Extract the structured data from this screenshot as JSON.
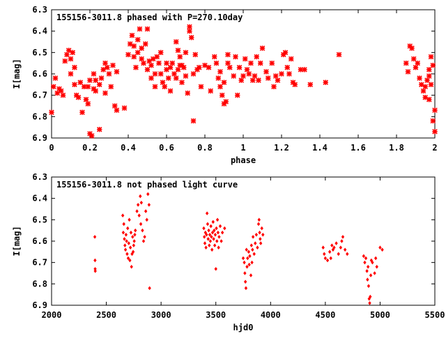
{
  "chart_data": [
    {
      "type": "scatter",
      "title": "155156-3011.8 phased with P=270.10day",
      "xlabel": "phase",
      "ylabel": "I[mag]",
      "xlim": [
        0,
        2
      ],
      "ylim": [
        6.3,
        6.9
      ],
      "y_inverted": true,
      "x_ticks": [
        "0",
        "0.2",
        "0.4",
        "0.6",
        "0.8",
        "1",
        "1.2",
        "1.4",
        "1.6",
        "1.8",
        "2"
      ],
      "y_ticks": [
        "6.3",
        "6.4",
        "6.5",
        "6.6",
        "6.7",
        "6.8",
        "6.9"
      ],
      "grid": false,
      "marker": "cross",
      "color": "#ff0000",
      "points": [
        [
          0.0,
          6.78
        ],
        [
          0.01,
          6.66
        ],
        [
          0.02,
          6.62
        ],
        [
          0.03,
          6.69
        ],
        [
          0.04,
          6.67
        ],
        [
          0.05,
          6.68
        ],
        [
          0.06,
          6.7
        ],
        [
          0.07,
          6.54
        ],
        [
          0.08,
          6.51
        ],
        [
          0.09,
          6.49
        ],
        [
          0.1,
          6.53
        ],
        [
          0.11,
          6.5
        ],
        [
          0.1,
          6.6
        ],
        [
          0.12,
          6.57
        ],
        [
          0.12,
          6.65
        ],
        [
          0.13,
          6.7
        ],
        [
          0.14,
          6.71
        ],
        [
          0.15,
          6.64
        ],
        [
          0.16,
          6.78
        ],
        [
          0.17,
          6.66
        ],
        [
          0.18,
          6.72
        ],
        [
          0.19,
          6.74
        ],
        [
          0.19,
          6.66
        ],
        [
          0.2,
          6.88
        ],
        [
          0.21,
          6.89
        ],
        [
          0.2,
          6.63
        ],
        [
          0.22,
          6.67
        ],
        [
          0.22,
          6.6
        ],
        [
          0.23,
          6.68
        ],
        [
          0.23,
          6.63
        ],
        [
          0.25,
          6.86
        ],
        [
          0.25,
          6.65
        ],
        [
          0.26,
          6.62
        ],
        [
          0.27,
          6.58
        ],
        [
          0.28,
          6.69
        ],
        [
          0.28,
          6.55
        ],
        [
          0.29,
          6.57
        ],
        [
          0.3,
          6.6
        ],
        [
          0.31,
          6.66
        ],
        [
          0.32,
          6.56
        ],
        [
          0.33,
          6.75
        ],
        [
          0.34,
          6.77
        ],
        [
          0.34,
          6.59
        ],
        [
          0.38,
          6.76
        ],
        [
          0.4,
          6.51
        ],
        [
          0.41,
          6.46
        ],
        [
          0.42,
          6.42
        ],
        [
          0.43,
          6.52
        ],
        [
          0.43,
          6.47
        ],
        [
          0.44,
          6.57
        ],
        [
          0.45,
          6.44
        ],
        [
          0.45,
          6.5
        ],
        [
          0.46,
          6.39
        ],
        [
          0.47,
          6.48
        ],
        [
          0.47,
          6.53
        ],
        [
          0.48,
          6.55
        ],
        [
          0.49,
          6.46
        ],
        [
          0.5,
          6.58
        ],
        [
          0.5,
          6.39
        ],
        [
          0.51,
          6.54
        ],
        [
          0.52,
          6.62
        ],
        [
          0.52,
          6.56
        ],
        [
          0.53,
          6.53
        ],
        [
          0.54,
          6.6
        ],
        [
          0.54,
          6.66
        ],
        [
          0.55,
          6.52
        ],
        [
          0.56,
          6.55
        ],
        [
          0.57,
          6.6
        ],
        [
          0.57,
          6.5
        ],
        [
          0.58,
          6.64
        ],
        [
          0.59,
          6.66
        ],
        [
          0.6,
          6.58
        ],
        [
          0.6,
          6.55
        ],
        [
          0.61,
          6.62
        ],
        [
          0.62,
          6.57
        ],
        [
          0.62,
          6.68
        ],
        [
          0.63,
          6.55
        ],
        [
          0.64,
          6.6
        ],
        [
          0.65,
          6.45
        ],
        [
          0.65,
          6.62
        ],
        [
          0.66,
          6.58
        ],
        [
          0.66,
          6.49
        ],
        [
          0.67,
          6.56
        ],
        [
          0.67,
          6.52
        ],
        [
          0.68,
          6.64
        ],
        [
          0.68,
          6.56
        ],
        [
          0.69,
          6.57
        ],
        [
          0.7,
          6.5
        ],
        [
          0.7,
          6.61
        ],
        [
          0.71,
          6.69
        ],
        [
          0.72,
          6.38
        ],
        [
          0.72,
          6.4
        ],
        [
          0.73,
          6.43
        ],
        [
          0.74,
          6.82
        ],
        [
          0.74,
          6.6
        ],
        [
          0.75,
          6.51
        ],
        [
          0.76,
          6.58
        ],
        [
          0.77,
          6.57
        ],
        [
          0.78,
          6.66
        ],
        [
          0.8,
          6.56
        ],
        [
          0.82,
          6.57
        ],
        [
          0.83,
          6.68
        ],
        [
          0.85,
          6.52
        ],
        [
          0.86,
          6.55
        ],
        [
          0.87,
          6.62
        ],
        [
          0.88,
          6.66
        ],
        [
          0.88,
          6.59
        ],
        [
          0.89,
          6.7
        ],
        [
          0.9,
          6.74
        ],
        [
          0.9,
          6.64
        ],
        [
          0.91,
          6.73
        ],
        [
          0.92,
          6.55
        ],
        [
          0.92,
          6.51
        ],
        [
          0.93,
          6.57
        ],
        [
          0.95,
          6.61
        ],
        [
          0.96,
          6.52
        ],
        [
          0.97,
          6.7
        ],
        [
          0.98,
          6.57
        ],
        [
          0.99,
          6.63
        ],
        [
          1.0,
          6.61
        ],
        [
          1.01,
          6.53
        ],
        [
          1.02,
          6.58
        ],
        [
          1.03,
          6.6
        ],
        [
          1.04,
          6.55
        ],
        [
          1.05,
          6.63
        ],
        [
          1.06,
          6.61
        ],
        [
          1.07,
          6.52
        ],
        [
          1.08,
          6.63
        ],
        [
          1.09,
          6.55
        ],
        [
          1.1,
          6.48
        ],
        [
          1.12,
          6.59
        ],
        [
          1.13,
          6.62
        ],
        [
          1.15,
          6.55
        ],
        [
          1.16,
          6.66
        ],
        [
          1.17,
          6.61
        ],
        [
          1.18,
          6.63
        ],
        [
          1.2,
          6.6
        ],
        [
          1.21,
          6.51
        ],
        [
          1.22,
          6.5
        ],
        [
          1.23,
          6.57
        ],
        [
          1.24,
          6.6
        ],
        [
          1.25,
          6.53
        ],
        [
          1.26,
          6.64
        ],
        [
          1.27,
          6.65
        ],
        [
          1.3,
          6.58
        ],
        [
          1.32,
          6.58
        ],
        [
          1.35,
          6.65
        ],
        [
          1.43,
          6.64
        ],
        [
          1.5,
          6.51
        ],
        [
          1.85,
          6.55
        ],
        [
          1.86,
          6.59
        ],
        [
          1.87,
          6.47
        ],
        [
          1.88,
          6.48
        ],
        [
          1.89,
          6.53
        ],
        [
          1.9,
          6.57
        ],
        [
          1.91,
          6.55
        ],
        [
          1.92,
          6.62
        ],
        [
          1.93,
          6.65
        ],
        [
          1.94,
          6.68
        ],
        [
          1.95,
          6.71
        ],
        [
          1.96,
          6.63
        ],
        [
          1.97,
          6.58
        ],
        [
          1.97,
          6.72
        ],
        [
          1.98,
          6.52
        ],
        [
          1.98,
          6.65
        ],
        [
          1.99,
          6.56
        ],
        [
          1.99,
          6.82
        ],
        [
          2.0,
          6.77
        ],
        [
          2.0,
          6.87
        ],
        [
          1.97,
          6.61
        ],
        [
          1.95,
          6.66
        ]
      ]
    },
    {
      "type": "scatter",
      "title": "155156-3011.8 not phased light curve",
      "xlabel": "hjd0",
      "ylabel": "I[mag]",
      "xlim": [
        2000,
        5500
      ],
      "ylim": [
        6.3,
        6.9
      ],
      "y_inverted": true,
      "x_ticks": [
        "2000",
        "2500",
        "3000",
        "3500",
        "4000",
        "4500",
        "5000",
        "5500"
      ],
      "y_ticks": [
        "6.3",
        "6.4",
        "6.5",
        "6.6",
        "6.7",
        "6.8",
        "6.9"
      ],
      "grid": false,
      "marker": "diamond",
      "color": "#ff0000",
      "points": [
        [
          2395,
          6.58
        ],
        [
          2397,
          6.69
        ],
        [
          2398,
          6.73
        ],
        [
          2399,
          6.74
        ],
        [
          2650,
          6.48
        ],
        [
          2655,
          6.56
        ],
        [
          2660,
          6.52
        ],
        [
          2665,
          6.59
        ],
        [
          2670,
          6.62
        ],
        [
          2675,
          6.64
        ],
        [
          2680,
          6.57
        ],
        [
          2685,
          6.6
        ],
        [
          2690,
          6.66
        ],
        [
          2695,
          6.54
        ],
        [
          2700,
          6.68
        ],
        [
          2705,
          6.61
        ],
        [
          2710,
          6.5
        ],
        [
          2715,
          6.69
        ],
        [
          2720,
          6.63
        ],
        [
          2725,
          6.56
        ],
        [
          2730,
          6.72
        ],
        [
          2735,
          6.66
        ],
        [
          2740,
          6.58
        ],
        [
          2745,
          6.65
        ],
        [
          2750,
          6.62
        ],
        [
          2755,
          6.6
        ],
        [
          2760,
          6.57
        ],
        [
          2765,
          6.55
        ],
        [
          2780,
          6.46
        ],
        [
          2790,
          6.43
        ],
        [
          2800,
          6.48
        ],
        [
          2810,
          6.39
        ],
        [
          2815,
          6.52
        ],
        [
          2820,
          6.42
        ],
        [
          2830,
          6.55
        ],
        [
          2840,
          6.6
        ],
        [
          2850,
          6.58
        ],
        [
          2860,
          6.46
        ],
        [
          2870,
          6.5
        ],
        [
          2880,
          6.38
        ],
        [
          2890,
          6.43
        ],
        [
          2895,
          6.82
        ],
        [
          3390,
          6.54
        ],
        [
          3395,
          6.58
        ],
        [
          3400,
          6.61
        ],
        [
          3405,
          6.56
        ],
        [
          3410,
          6.63
        ],
        [
          3415,
          6.57
        ],
        [
          3420,
          6.47
        ],
        [
          3425,
          6.52
        ],
        [
          3430,
          6.59
        ],
        [
          3435,
          6.55
        ],
        [
          3440,
          6.62
        ],
        [
          3445,
          6.57
        ],
        [
          3450,
          6.6
        ],
        [
          3455,
          6.53
        ],
        [
          3460,
          6.58
        ],
        [
          3465,
          6.64
        ],
        [
          3470,
          6.56
        ],
        [
          3475,
          6.51
        ],
        [
          3480,
          6.59
        ],
        [
          3485,
          6.55
        ],
        [
          3490,
          6.62
        ],
        [
          3495,
          6.57
        ],
        [
          3500,
          6.73
        ],
        [
          3505,
          6.54
        ],
        [
          3510,
          6.6
        ],
        [
          3515,
          6.5
        ],
        [
          3520,
          6.56
        ],
        [
          3525,
          6.63
        ],
        [
          3530,
          6.58
        ],
        [
          3540,
          6.53
        ],
        [
          3550,
          6.6
        ],
        [
          3560,
          6.56
        ],
        [
          3580,
          6.54
        ],
        [
          3750,
          6.68
        ],
        [
          3760,
          6.7
        ],
        [
          3765,
          6.75
        ],
        [
          3770,
          6.79
        ],
        [
          3775,
          6.82
        ],
        [
          3780,
          6.64
        ],
        [
          3785,
          6.72
        ],
        [
          3790,
          6.68
        ],
        [
          3800,
          6.65
        ],
        [
          3805,
          6.71
        ],
        [
          3810,
          6.67
        ],
        [
          3820,
          6.76
        ],
        [
          3825,
          6.62
        ],
        [
          3830,
          6.7
        ],
        [
          3835,
          6.64
        ],
        [
          3840,
          6.58
        ],
        [
          3850,
          6.66
        ],
        [
          3860,
          6.61
        ],
        [
          3870,
          6.57
        ],
        [
          3880,
          6.63
        ],
        [
          3890,
          6.52
        ],
        [
          3895,
          6.5
        ],
        [
          3900,
          6.56
        ],
        [
          3905,
          6.59
        ],
        [
          3910,
          6.61
        ],
        [
          3920,
          6.54
        ],
        [
          3930,
          6.57
        ],
        [
          4480,
          6.63
        ],
        [
          4490,
          6.66
        ],
        [
          4500,
          6.68
        ],
        [
          4520,
          6.69
        ],
        [
          4540,
          6.65
        ],
        [
          4550,
          6.68
        ],
        [
          4560,
          6.62
        ],
        [
          4570,
          6.64
        ],
        [
          4580,
          6.63
        ],
        [
          4600,
          6.61
        ],
        [
          4620,
          6.66
        ],
        [
          4640,
          6.63
        ],
        [
          4650,
          6.6
        ],
        [
          4660,
          6.58
        ],
        [
          4680,
          6.64
        ],
        [
          4700,
          6.66
        ],
        [
          4850,
          6.67
        ],
        [
          4860,
          6.7
        ],
        [
          4870,
          6.68
        ],
        [
          4880,
          6.74
        ],
        [
          4885,
          6.78
        ],
        [
          4890,
          6.72
        ],
        [
          4895,
          6.81
        ],
        [
          4900,
          6.87
        ],
        [
          4905,
          6.89
        ],
        [
          4910,
          6.86
        ],
        [
          4915,
          6.76
        ],
        [
          4920,
          6.69
        ],
        [
          4930,
          6.7
        ],
        [
          4950,
          6.75
        ],
        [
          4960,
          6.68
        ],
        [
          4970,
          6.72
        ],
        [
          5000,
          6.63
        ],
        [
          5020,
          6.64
        ]
      ]
    }
  ]
}
